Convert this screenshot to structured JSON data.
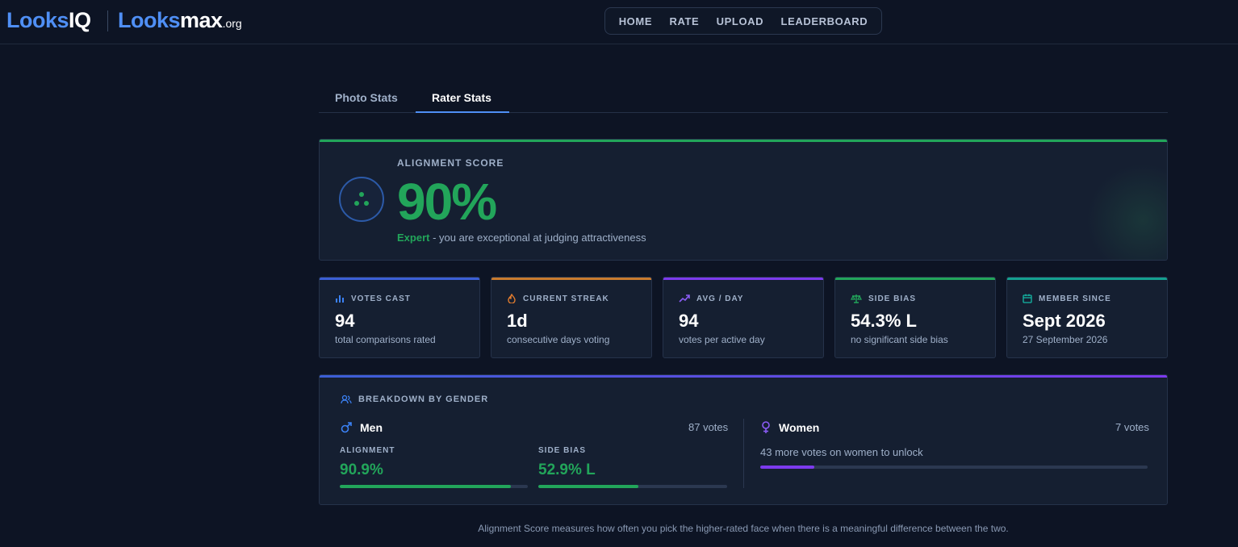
{
  "header": {
    "logo_looksiq": {
      "part1": "Looks",
      "part2": "IQ"
    },
    "logo_looksmax": {
      "part1": "Looks",
      "part2": "max",
      "part3": ".org"
    },
    "nav": [
      "HOME",
      "RATE",
      "UPLOAD",
      "LEADERBOARD"
    ]
  },
  "tabs": {
    "photo": "Photo Stats",
    "rater": "Rater Stats",
    "active": "Rater Stats"
  },
  "alignment": {
    "label": "ALIGNMENT SCORE",
    "value": "90%",
    "level": "Expert",
    "description": " - you are exceptional at judging attractiveness"
  },
  "stats": [
    {
      "label": "VOTES CAST",
      "value": "94",
      "sub": "total comparisons rated",
      "color": "#3b82f6",
      "icon": "bar-chart-icon"
    },
    {
      "label": "CURRENT STREAK",
      "value": "1d",
      "sub": "consecutive days voting",
      "color": "#e07b2e",
      "icon": "flame-icon"
    },
    {
      "label": "AVG / DAY",
      "value": "94",
      "sub": "votes per active day",
      "color": "#8b5cf6",
      "icon": "trending-up-icon"
    },
    {
      "label": "SIDE BIAS",
      "value": "54.3% L",
      "sub": "no significant side bias",
      "color": "#22a55a",
      "icon": "scale-icon"
    },
    {
      "label": "MEMBER SINCE",
      "value": "Sept 2026",
      "sub": "27 September 2026",
      "color": "#14b8a6",
      "icon": "calendar-icon"
    }
  ],
  "breakdown": {
    "title": "BREAKDOWN BY GENDER",
    "men": {
      "label": "Men",
      "votes": "87 votes",
      "alignment_label": "ALIGNMENT",
      "alignment_value": "90.9%",
      "alignment_fraction": 0.909,
      "bias_label": "SIDE BIAS",
      "bias_value": "52.9% L",
      "bias_fraction": 0.529
    },
    "women": {
      "label": "Women",
      "votes": "7 votes",
      "unlock_text": "43 more votes on women to unlock",
      "progress_fraction": 0.14
    }
  },
  "footnote": "Alignment Score measures how often you pick the higher-rated face when there is a meaningful difference between the two.",
  "colors": {
    "accent": "#4f8ff5",
    "green": "#22a55a",
    "purple": "#7c3aed",
    "blue": "#3b82f6",
    "background": "#0d1424"
  }
}
